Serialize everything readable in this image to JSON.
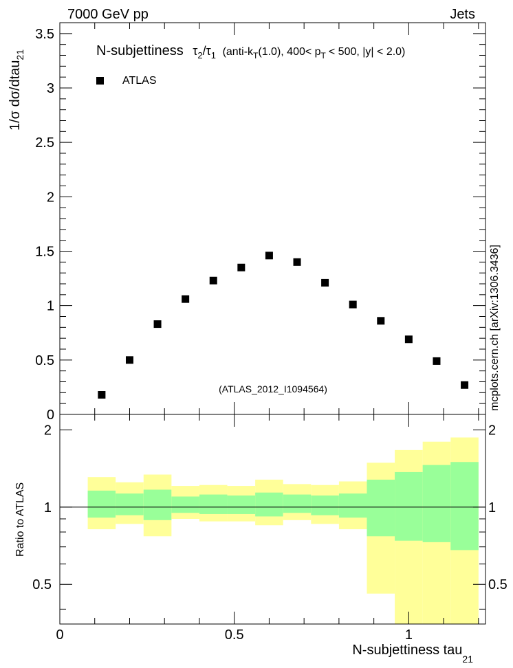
{
  "header": {
    "left": "7000 GeV pp",
    "right": "Jets",
    "side_label": "mcplots.cern.ch [arXiv:1306.3436]"
  },
  "title": {
    "main": "N-subjettiness",
    "tau2": "τ",
    "tau2_sub": "2",
    "slash": "/",
    "tau1": "τ",
    "tau1_sub": "1",
    "cond1": "(anti-k",
    "cond1_sub": "T",
    "cond2": "(1.0), 400< p",
    "cond2_sub": "T",
    "cond3": "< 500, |y| < 2.0)"
  },
  "legend": {
    "label": "ATLAS"
  },
  "analysis_id": "(ATLAS_2012_I1094564)",
  "colors": {
    "marker": "#000000",
    "band_inner": "#99ff99",
    "band_outer": "#ffff99",
    "analysis_id": "#999999",
    "side_label": "#555555"
  },
  "chart_data": [
    {
      "type": "scatter",
      "name": "main",
      "ylabel": "1/σ dσ/dtau",
      "ylabel_sub": "21",
      "xlim": [
        0,
        1.22
      ],
      "ylim": [
        0,
        3.6
      ],
      "x_ticks": [
        0,
        0.5,
        1
      ],
      "y_ticks": [
        0,
        0.5,
        1,
        1.5,
        2,
        2.5,
        3,
        3.5
      ],
      "y_tick_labels": [
        "0",
        "0.5",
        "1",
        "1.5",
        "2",
        "2.5",
        "3",
        "3.5"
      ],
      "series": [
        {
          "name": "ATLAS",
          "x": [
            0.12,
            0.2,
            0.28,
            0.36,
            0.44,
            0.52,
            0.6,
            0.68,
            0.76,
            0.84,
            0.92,
            1.0,
            1.08,
            1.16
          ],
          "y": [
            0.18,
            0.5,
            0.83,
            1.06,
            1.23,
            1.35,
            1.46,
            1.4,
            1.21,
            1.01,
            0.86,
            0.69,
            0.49,
            0.27
          ]
        }
      ]
    },
    {
      "type": "area",
      "name": "ratio",
      "ylabel": "Ratio to ATLAS",
      "xlabel": "N-subjettiness tau",
      "xlabel_sub": "21",
      "xlim": [
        0,
        1.22
      ],
      "ylim": [
        0.35,
        2.3
      ],
      "x_ticks": [
        0,
        0.5,
        1
      ],
      "x_tick_labels": [
        "0",
        "0.5",
        "1"
      ],
      "y_ticks": [
        0.5,
        1,
        2
      ],
      "y_tick_labels": [
        "0.5",
        "1",
        "2"
      ],
      "reference_line": 1,
      "bins": [
        {
          "x0": 0.08,
          "x1": 0.16,
          "inner": [
            0.91,
            1.16
          ],
          "outer": [
            0.82,
            1.31
          ]
        },
        {
          "x0": 0.16,
          "x1": 0.24,
          "inner": [
            0.93,
            1.13
          ],
          "outer": [
            0.86,
            1.25
          ]
        },
        {
          "x0": 0.24,
          "x1": 0.32,
          "inner": [
            0.89,
            1.17
          ],
          "outer": [
            0.77,
            1.34
          ]
        },
        {
          "x0": 0.32,
          "x1": 0.4,
          "inner": [
            0.95,
            1.1
          ],
          "outer": [
            0.9,
            1.21
          ]
        },
        {
          "x0": 0.4,
          "x1": 0.48,
          "inner": [
            0.94,
            1.12
          ],
          "outer": [
            0.88,
            1.22
          ]
        },
        {
          "x0": 0.48,
          "x1": 0.56,
          "inner": [
            0.94,
            1.11
          ],
          "outer": [
            0.88,
            1.21
          ]
        },
        {
          "x0": 0.56,
          "x1": 0.64,
          "inner": [
            0.92,
            1.14
          ],
          "outer": [
            0.85,
            1.28
          ]
        },
        {
          "x0": 0.64,
          "x1": 0.72,
          "inner": [
            0.95,
            1.12
          ],
          "outer": [
            0.89,
            1.23
          ]
        },
        {
          "x0": 0.72,
          "x1": 0.8,
          "inner": [
            0.93,
            1.11
          ],
          "outer": [
            0.86,
            1.22
          ]
        },
        {
          "x0": 0.8,
          "x1": 0.88,
          "inner": [
            0.91,
            1.13
          ],
          "outer": [
            0.82,
            1.26
          ]
        },
        {
          "x0": 0.88,
          "x1": 0.96,
          "inner": [
            0.77,
            1.28
          ],
          "outer": [
            0.46,
            1.49
          ]
        },
        {
          "x0": 0.96,
          "x1": 1.04,
          "inner": [
            0.74,
            1.37
          ],
          "outer": [
            0.35,
            1.67
          ]
        },
        {
          "x0": 1.04,
          "x1": 1.12,
          "inner": [
            0.73,
            1.46
          ],
          "outer": [
            0.35,
            1.8
          ]
        },
        {
          "x0": 1.12,
          "x1": 1.2,
          "inner": [
            0.68,
            1.5
          ],
          "outer": [
            0.35,
            1.87
          ]
        }
      ]
    }
  ]
}
